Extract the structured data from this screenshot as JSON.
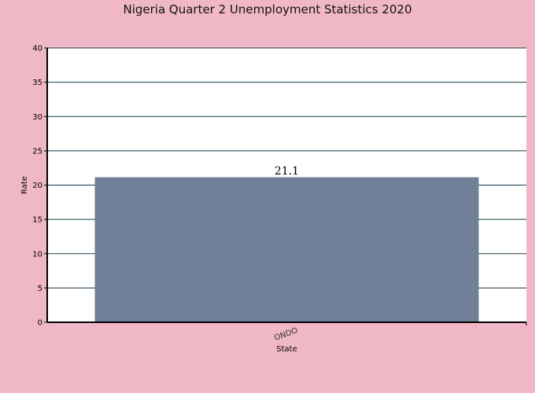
{
  "chart_data": {
    "type": "bar",
    "title": "Nigeria Quarter 2 Unemployment Statistics 2020",
    "xlabel": "State",
    "ylabel": "Rate",
    "categories": [
      "ONDO"
    ],
    "values": [
      21.1
    ],
    "data_labels": [
      "21.1"
    ],
    "ylim": [
      0,
      40
    ],
    "yticks": [
      0,
      5,
      10,
      15,
      20,
      25,
      30,
      35,
      40
    ],
    "grid": true,
    "legend": "none",
    "colors": {
      "background": "#f0b8c6",
      "plot_area": "#ffffff",
      "bar": "#718099",
      "gridline": "#1a3a4a"
    }
  }
}
